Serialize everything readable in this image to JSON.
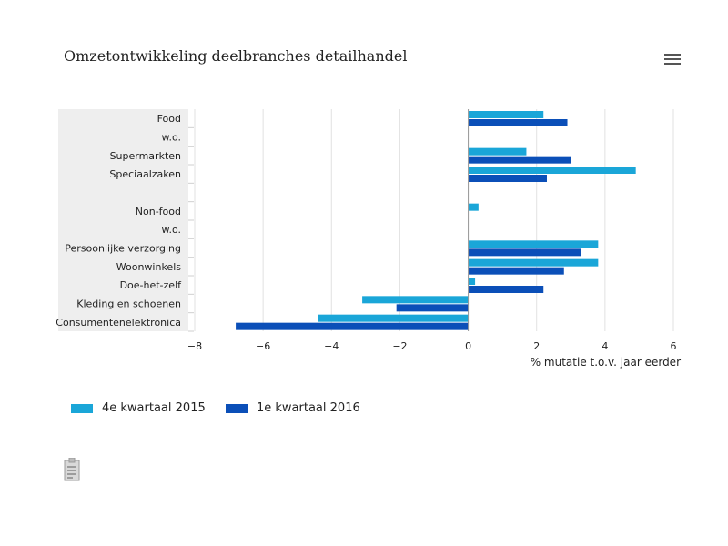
{
  "title": "Omzetontwikkeling deelbranches detailhandel",
  "icons": {
    "menu": "hamburger-menu-icon",
    "side": "document-icon"
  },
  "colors": {
    "series1": "#1aa6d8",
    "series2": "#0b4fb8",
    "category_band": "#eeeeee",
    "grid": "#e2e2e2"
  },
  "legend": [
    {
      "label": "4e kwartaal 2015"
    },
    {
      "label": "1e kwartaal 2016"
    }
  ],
  "chart_data": {
    "type": "bar",
    "orientation": "horizontal",
    "categories": [
      "Food",
      "w.o.",
      "Supermarkten",
      "Speciaalzaken",
      "",
      "Non-food",
      "w.o.",
      "Persoonlijke verzorging",
      "Woonwinkels",
      "Doe-het-zelf",
      "Kleding en schoenen",
      "Consumentenelektronica"
    ],
    "series": [
      {
        "name": "4e kwartaal 2015",
        "values": [
          2.2,
          null,
          1.7,
          4.9,
          null,
          0.3,
          null,
          3.8,
          3.8,
          0.2,
          -3.1,
          -4.4
        ]
      },
      {
        "name": "1e kwartaal 2016",
        "values": [
          2.9,
          null,
          3.0,
          2.3,
          null,
          null,
          null,
          3.3,
          2.8,
          2.2,
          -2.1,
          -6.8
        ]
      }
    ],
    "xlabel": "% mutatie t.o.v. jaar eerder",
    "xlim": [
      -8,
      6
    ],
    "xticks": [
      -8,
      -6,
      -4,
      -2,
      0,
      2,
      4,
      6
    ],
    "grid": true,
    "legend_position": "bottom-left"
  }
}
